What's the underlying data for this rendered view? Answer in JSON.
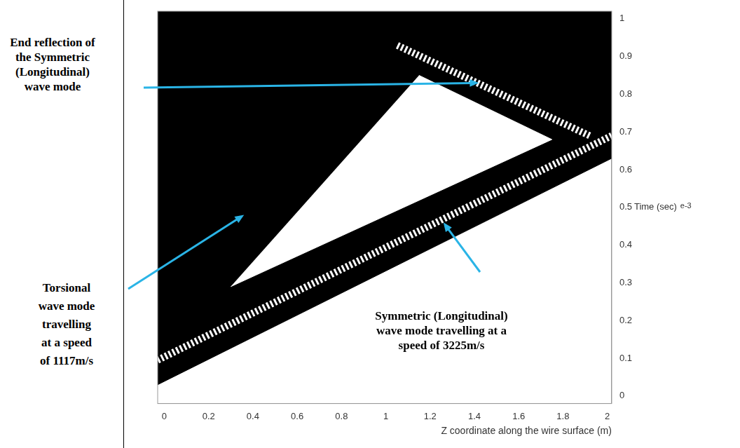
{
  "chart_data": {
    "type": "area",
    "x_label": "Z coordinate along the wire surface (m)",
    "y_label": "Time (sec)",
    "y_scale_label": "e-3",
    "xlim": [
      -0.03,
      2.02
    ],
    "ylim": [
      -0.02,
      1.02
    ],
    "xticks": [
      0,
      0.2,
      0.4,
      0.6,
      0.8,
      1,
      1.2,
      1.4,
      1.6,
      1.8,
      2
    ],
    "yticks": [
      0,
      0.1,
      0.2,
      0.3,
      0.4,
      0.5,
      0.6,
      0.7,
      0.8,
      0.9,
      1
    ],
    "grid": false,
    "series": [
      {
        "type": "area",
        "color": "#000000",
        "values": [
          [
            -0.03,
            0.03
          ],
          [
            2.02,
            0.63
          ],
          [
            2.02,
            1.02
          ],
          [
            -0.03,
            1.02
          ]
        ]
      },
      {
        "type": "area",
        "color": "#ffffff",
        "values": [
          [
            0.3,
            0.29
          ],
          [
            1.75,
            0.68
          ],
          [
            1.15,
            0.85
          ]
        ]
      },
      {
        "type": "line",
        "line_style": "dotted",
        "color": "#ffffff",
        "values": [
          [
            -0.03,
            0.095
          ],
          [
            2.02,
            0.69
          ]
        ]
      },
      {
        "type": "line",
        "line_style": "dotted",
        "color": "#ffffff",
        "values": [
          [
            1.92,
            0.69
          ],
          [
            1.05,
            0.93
          ]
        ]
      }
    ],
    "annotations": [
      {
        "text": "End reflection of the Symmetric (Longitudinal) wave mode",
        "target": [
          1.42,
          0.83
        ]
      },
      {
        "text": "Torsional wave mode travelling at a speed of 1117m/s",
        "target": [
          0.36,
          0.48
        ]
      },
      {
        "text": "Symmetric (Longitudinal) wave mode travelling at a speed of 3225m/s",
        "target": [
          1.26,
          0.46
        ]
      }
    ]
  }
}
